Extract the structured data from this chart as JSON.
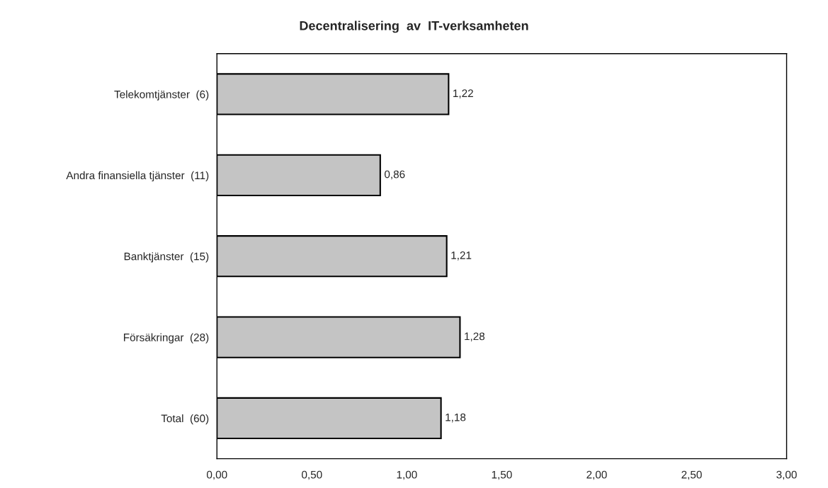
{
  "chart_data": {
    "type": "bar",
    "orientation": "horizontal",
    "title": "Decentralisering  av  IT-verksamheten",
    "categories": [
      "Telekomtjänster  (6)",
      "Andra finansiella tjänster  (11)",
      "Banktjänster  (15)",
      "Försäkringar  (28)",
      "Total  (60)"
    ],
    "values": [
      1.22,
      0.86,
      1.21,
      1.28,
      1.18
    ],
    "value_labels": [
      "1,22",
      "0,86",
      "1,21",
      "1,28",
      "1,18"
    ],
    "color": "#c4c4c4",
    "xlim": [
      0,
      3
    ],
    "xticks": [
      {
        "value": 0,
        "label": "0,00"
      },
      {
        "value": 0.5,
        "label": "0,50"
      },
      {
        "value": 1,
        "label": "1,00"
      },
      {
        "value": 1.5,
        "label": "1,50"
      },
      {
        "value": 2,
        "label": "2,00"
      },
      {
        "value": 2.5,
        "label": "2,50"
      },
      {
        "value": 3,
        "label": "3,00"
      }
    ],
    "grid": false,
    "legend": false
  }
}
